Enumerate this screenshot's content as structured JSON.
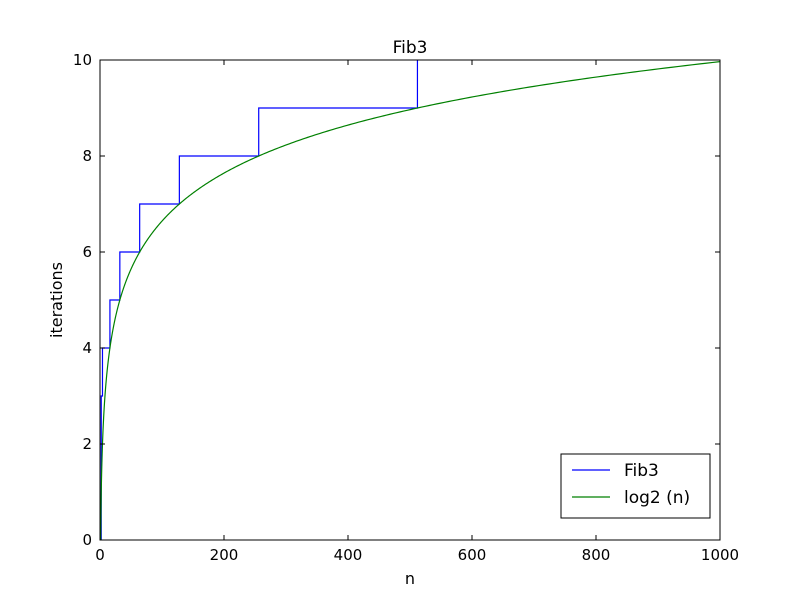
{
  "chart_data": {
    "type": "line",
    "title": "Fib3",
    "xlabel": "n",
    "ylabel": "iterations",
    "xlim": [
      0,
      1000
    ],
    "ylim": [
      0,
      10
    ],
    "xticks": [
      0,
      200,
      400,
      600,
      800,
      1000
    ],
    "yticks": [
      0,
      2,
      4,
      6,
      8,
      10
    ],
    "grid": false,
    "legend_position": "bottom-right",
    "series": [
      {
        "name": "Fib3",
        "color": "#0000ff",
        "style": "step",
        "x": [
          0,
          2,
          2,
          4,
          4,
          8,
          8,
          16,
          16,
          32,
          32,
          64,
          64,
          128,
          128,
          256,
          256,
          512,
          512
        ],
        "y": [
          0,
          0,
          3,
          3,
          4,
          4,
          4,
          4,
          5,
          5,
          6,
          6,
          7,
          7,
          8,
          8,
          9,
          9,
          10
        ]
      },
      {
        "name": "log2 (n)",
        "color": "#008000",
        "style": "curve",
        "function": "log2",
        "x": [
          1,
          2,
          4,
          8,
          16,
          32,
          64,
          128,
          256,
          512,
          1000
        ],
        "y": [
          0,
          1,
          2,
          3,
          4,
          5,
          6,
          7,
          8,
          9,
          9.97
        ]
      }
    ]
  }
}
